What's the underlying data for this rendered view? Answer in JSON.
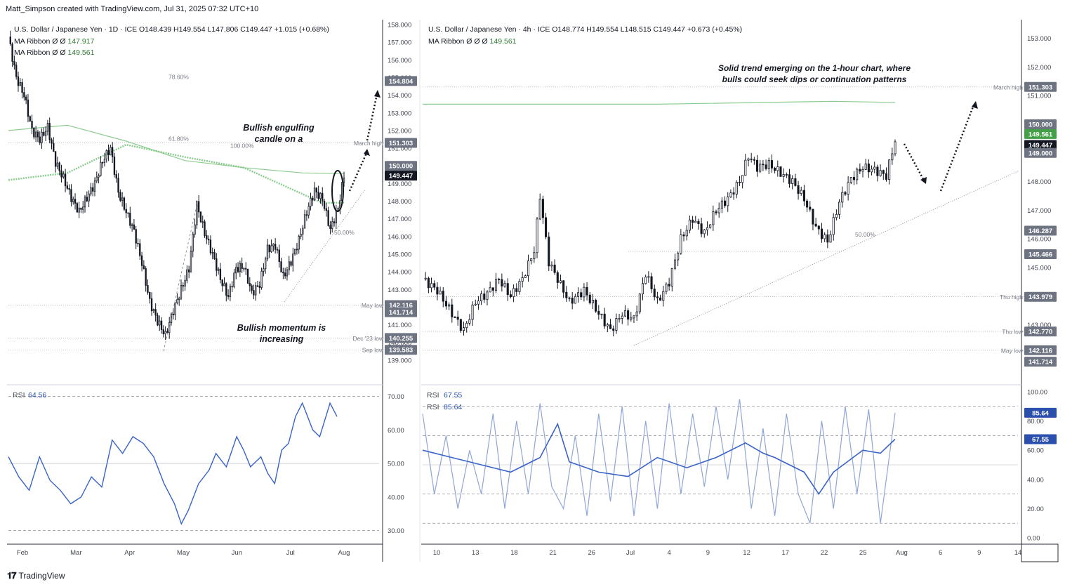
{
  "credit": "Matt_Simpson created with TradingView.com, Jul 31, 2025 07:32 UTC+10",
  "footer": {
    "brand": "TradingView"
  },
  "colors": {
    "up": "#131722",
    "ma": "#81c784",
    "rsi": "#2962ff",
    "rsi_light": "#7e9bd9",
    "badge_dark": "#131722",
    "badge_gray": "#6e7382",
    "badge_green": "#43a047",
    "badge_blue": "#2a4fad"
  },
  "chart_data": [
    {
      "type": "candlestick",
      "title": "U.S. Dollar / Japanese Yen · 1D · ICE",
      "ohlc_header": {
        "o": "O148.439",
        "h": "H149.554",
        "l": "L147.806",
        "c": "C149.447",
        "chg": "+1.015 (+0.68%)"
      },
      "indicators": [
        {
          "name": "MA Ribbon",
          "params": "Ø Ø",
          "value": "147.917"
        },
        {
          "name": "MA Ribbon",
          "params": "Ø Ø",
          "value": "149.561"
        }
      ],
      "x_ticks": [
        "Feb",
        "Mar",
        "Apr",
        "May",
        "Jun",
        "Jul",
        "Aug"
      ],
      "y_ticks": [
        "158.000",
        "157.000",
        "156.000",
        "155.000",
        "154.000",
        "153.000",
        "152.000",
        "151.000",
        "150.000",
        "149.000",
        "148.000",
        "147.000",
        "146.000",
        "145.000",
        "144.000",
        "143.000",
        "142.000",
        "141.000",
        "140.000",
        "139.000"
      ],
      "ylim": [
        138.4,
        158.2
      ],
      "close_path": [
        [
          0,
          157.3
        ],
        [
          4,
          155
        ],
        [
          8,
          154
        ],
        [
          12,
          152
        ],
        [
          16,
          151.5
        ],
        [
          20,
          152.2
        ],
        [
          24,
          150.2
        ],
        [
          28,
          149.3
        ],
        [
          32,
          148.2
        ],
        [
          36,
          147.4
        ],
        [
          40,
          148.2
        ],
        [
          44,
          149.0
        ],
        [
          48,
          150.3
        ],
        [
          52,
          151.0
        ],
        [
          56,
          148.5
        ],
        [
          60,
          147.4
        ],
        [
          64,
          146.3
        ],
        [
          68,
          144.5
        ],
        [
          72,
          142.3
        ],
        [
          76,
          141.2
        ],
        [
          80,
          140.4
        ],
        [
          84,
          141.8
        ],
        [
          88,
          143.0
        ],
        [
          92,
          144.2
        ],
        [
          96,
          147.8
        ],
        [
          100,
          146.2
        ],
        [
          104,
          145.0
        ],
        [
          108,
          143.6
        ],
        [
          112,
          142.6
        ],
        [
          116,
          144.2
        ],
        [
          120,
          144.3
        ],
        [
          124,
          142.8
        ],
        [
          128,
          143.3
        ],
        [
          132,
          145.3
        ],
        [
          136,
          145.5
        ],
        [
          140,
          143.7
        ],
        [
          144,
          144.6
        ],
        [
          148,
          145.8
        ],
        [
          152,
          147.4
        ],
        [
          156,
          148.6
        ],
        [
          160,
          148.1
        ],
        [
          164,
          146.4
        ],
        [
          168,
          147.6
        ],
        [
          171,
          149.447
        ]
      ],
      "ma_fast": [
        [
          0,
          149.2
        ],
        [
          30,
          149.6
        ],
        [
          60,
          151.2
        ],
        [
          90,
          150.5
        ],
        [
          120,
          149.9
        ],
        [
          140,
          148.9
        ],
        [
          160,
          147.9
        ],
        [
          171,
          147.917
        ]
      ],
      "ma_slow": [
        [
          0,
          152.0
        ],
        [
          30,
          152.3
        ],
        [
          60,
          151.4
        ],
        [
          90,
          150.3
        ],
        [
          120,
          149.9
        ],
        [
          150,
          149.6
        ],
        [
          171,
          149.561
        ]
      ],
      "annotations": [
        "Bullish engulfing",
        "candle on a",
        "Bullish momentum is",
        "increasing"
      ],
      "fib_levels": [
        {
          "label": "78.60%",
          "value": 154.8
        },
        {
          "label": "61.80%",
          "value": 151.3
        },
        {
          "label": "100.00%",
          "value": 150.9
        },
        {
          "label": "50.00%",
          "value": 146.0
        }
      ],
      "levels": [
        {
          "label": "March high",
          "value": 151.303
        },
        {
          "label": "May low",
          "value": 142.116
        },
        {
          "label": "Dec '23 low",
          "value": 140.255
        },
        {
          "label": "Sep low",
          "value": 139.583
        }
      ],
      "badges": [
        "154.804",
        "151.303",
        "150.000",
        "149.447",
        "142.116",
        "141.714",
        "140.255",
        "139.583"
      ],
      "rsi": {
        "label": "RSI",
        "value": "64.56",
        "y_ticks": [
          "70.00",
          "60.00",
          "50.00",
          "40.00",
          "30.00"
        ],
        "path": [
          [
            0,
            52
          ],
          [
            6,
            46
          ],
          [
            12,
            42
          ],
          [
            18,
            52
          ],
          [
            24,
            45
          ],
          [
            30,
            42
          ],
          [
            36,
            38
          ],
          [
            42,
            40
          ],
          [
            48,
            46
          ],
          [
            54,
            43
          ],
          [
            60,
            57
          ],
          [
            66,
            53
          ],
          [
            72,
            58
          ],
          [
            78,
            56
          ],
          [
            84,
            52
          ],
          [
            90,
            44
          ],
          [
            96,
            38
          ],
          [
            100,
            32
          ],
          [
            104,
            36
          ],
          [
            110,
            44
          ],
          [
            116,
            48
          ],
          [
            120,
            53
          ],
          [
            126,
            49
          ],
          [
            132,
            58
          ],
          [
            136,
            54
          ],
          [
            140,
            49
          ],
          [
            146,
            52
          ],
          [
            150,
            47
          ],
          [
            154,
            44
          ],
          [
            158,
            54
          ],
          [
            162,
            56
          ],
          [
            166,
            64
          ],
          [
            170,
            68
          ],
          [
            176,
            60
          ],
          [
            180,
            58
          ],
          [
            186,
            68
          ],
          [
            190,
            64
          ]
        ]
      }
    },
    {
      "type": "candlestick",
      "title": "U.S. Dollar / Japanese Yen · 4h · ICE",
      "ohlc_header": {
        "o": "O148.774",
        "h": "H149.554",
        "l": "L148.515",
        "c": "C149.447",
        "chg": "+0.673 (+0.45%)"
      },
      "indicators": [
        {
          "name": "MA Ribbon",
          "params": "Ø Ø Ø",
          "value": "149.561"
        }
      ],
      "x_ticks": [
        "10",
        "13",
        "18",
        "21",
        "26",
        "Jul",
        "4",
        "9",
        "12",
        "17",
        "22",
        "25",
        "Aug",
        "6",
        "9",
        "14"
      ],
      "y_ticks": [
        "153.000",
        "152.000",
        "151.000",
        "150.000",
        "149.000",
        "148.000",
        "147.000",
        "146.000",
        "145.000",
        "144.000",
        "143.000"
      ],
      "ylim": [
        141.4,
        153.6
      ],
      "close_path": [
        [
          0,
          144.6
        ],
        [
          5,
          144.2
        ],
        [
          10,
          143.4
        ],
        [
          14,
          142.8
        ],
        [
          18,
          143.8
        ],
        [
          22,
          144.1
        ],
        [
          26,
          144.6
        ],
        [
          30,
          144.0
        ],
        [
          34,
          144.6
        ],
        [
          38,
          145.6
        ],
        [
          40,
          147.5
        ],
        [
          43,
          145.2
        ],
        [
          46,
          144.6
        ],
        [
          50,
          143.8
        ],
        [
          55,
          144.2
        ],
        [
          60,
          143.4
        ],
        [
          64,
          142.8
        ],
        [
          68,
          143.4
        ],
        [
          72,
          143.2
        ],
        [
          76,
          144.8
        ],
        [
          80,
          143.8
        ],
        [
          84,
          144.5
        ],
        [
          88,
          146.0
        ],
        [
          92,
          146.7
        ],
        [
          96,
          146.2
        ],
        [
          100,
          147.0
        ],
        [
          104,
          147.4
        ],
        [
          108,
          148.0
        ],
        [
          111,
          148.9
        ],
        [
          114,
          148.5
        ],
        [
          118,
          148.6
        ],
        [
          122,
          148.3
        ],
        [
          126,
          148.0
        ],
        [
          130,
          147.4
        ],
        [
          134,
          146.4
        ],
        [
          138,
          145.9
        ],
        [
          142,
          147.3
        ],
        [
          146,
          148.1
        ],
        [
          150,
          148.5
        ],
        [
          154,
          148.4
        ],
        [
          158,
          148.2
        ],
        [
          161,
          149.447
        ]
      ],
      "ma": [
        [
          0,
          150.7
        ],
        [
          80,
          150.7
        ],
        [
          140,
          150.8
        ],
        [
          161,
          150.76
        ]
      ],
      "annotations": [
        "Solid trend emerging on the 1-hour chart, where",
        "bulls could seek dips or continuation patterns"
      ],
      "fib_levels": [
        {
          "label": "50.00%",
          "value": 146.0
        }
      ],
      "levels": [
        {
          "label": "March high",
          "value": 151.303
        },
        {
          "label": "Thu high",
          "value": 143.979
        },
        {
          "label": "Thu low",
          "value": 142.77
        },
        {
          "label": "May low",
          "value": 142.116
        }
      ],
      "badges": [
        "151.303",
        "150.000",
        "149.561",
        "149.447",
        "149.000",
        "146.287",
        "145.466",
        "143.979",
        "142.770",
        "142.116",
        "141.714"
      ],
      "rsi": {
        "labels": [
          {
            "label": "RSI",
            "value": "67.55"
          },
          {
            "label": "RSI",
            "value": "85.64"
          }
        ],
        "y_ticks": [
          "100.00",
          "80.00",
          "60.00",
          "40.00",
          "20.00",
          "0.00"
        ],
        "badges": [
          "85.64",
          "67.55"
        ],
        "slow_path": [
          [
            0,
            60
          ],
          [
            10,
            55
          ],
          [
            20,
            50
          ],
          [
            30,
            45
          ],
          [
            40,
            55
          ],
          [
            46,
            78
          ],
          [
            50,
            52
          ],
          [
            60,
            45
          ],
          [
            70,
            42
          ],
          [
            80,
            55
          ],
          [
            90,
            48
          ],
          [
            100,
            55
          ],
          [
            110,
            65
          ],
          [
            116,
            58
          ],
          [
            120,
            55
          ],
          [
            130,
            45
          ],
          [
            135,
            30
          ],
          [
            140,
            45
          ],
          [
            150,
            60
          ],
          [
            156,
            58
          ],
          [
            161,
            67.55
          ]
        ],
        "fast_path": [
          [
            0,
            85
          ],
          [
            4,
            30
          ],
          [
            8,
            70
          ],
          [
            12,
            20
          ],
          [
            16,
            60
          ],
          [
            20,
            30
          ],
          [
            24,
            85
          ],
          [
            28,
            20
          ],
          [
            32,
            80
          ],
          [
            36,
            30
          ],
          [
            40,
            92
          ],
          [
            44,
            35
          ],
          [
            48,
            20
          ],
          [
            52,
            70
          ],
          [
            56,
            15
          ],
          [
            60,
            85
          ],
          [
            64,
            25
          ],
          [
            68,
            90
          ],
          [
            72,
            15
          ],
          [
            76,
            80
          ],
          [
            80,
            20
          ],
          [
            84,
            92
          ],
          [
            88,
            30
          ],
          [
            92,
            85
          ],
          [
            96,
            35
          ],
          [
            100,
            90
          ],
          [
            104,
            40
          ],
          [
            108,
            95
          ],
          [
            112,
            20
          ],
          [
            116,
            75
          ],
          [
            120,
            15
          ],
          [
            124,
            85
          ],
          [
            128,
            30
          ],
          [
            132,
            10
          ],
          [
            136,
            80
          ],
          [
            140,
            20
          ],
          [
            144,
            90
          ],
          [
            148,
            30
          ],
          [
            152,
            88
          ],
          [
            156,
            10
          ],
          [
            161,
            85.64
          ]
        ]
      }
    }
  ]
}
